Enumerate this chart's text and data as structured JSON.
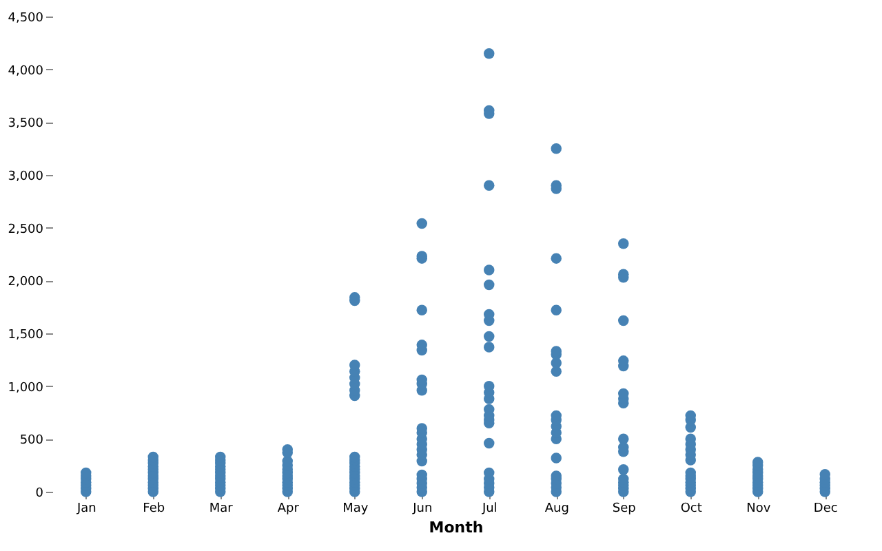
{
  "chart_data": {
    "type": "scatter",
    "xlabel": "Month",
    "categories": [
      "Jan",
      "Feb",
      "Mar",
      "Apr",
      "May",
      "Jun",
      "Jul",
      "Aug",
      "Sep",
      "Oct",
      "Nov",
      "Dec"
    ],
    "series": [
      {
        "color": "#4682b4",
        "x": [
          "Jan",
          "Jan",
          "Jan",
          "Jan",
          "Jan",
          "Jan",
          "Jan",
          "Feb",
          "Feb",
          "Feb",
          "Feb",
          "Feb",
          "Feb",
          "Feb",
          "Feb",
          "Feb",
          "Feb",
          "Feb",
          "Feb",
          "Mar",
          "Mar",
          "Mar",
          "Mar",
          "Mar",
          "Mar",
          "Mar",
          "Mar",
          "Mar",
          "Mar",
          "Mar",
          "Mar",
          "Apr",
          "Apr",
          "Apr",
          "Apr",
          "Apr",
          "Apr",
          "Apr",
          "Apr",
          "Apr",
          "Apr",
          "Apr",
          "Apr",
          "May",
          "May",
          "May",
          "May",
          "May",
          "May",
          "May",
          "May",
          "May",
          "May",
          "May",
          "May",
          "May",
          "May",
          "May",
          "May",
          "May",
          "May",
          "May",
          "May",
          "Jun",
          "Jun",
          "Jun",
          "Jun",
          "Jun",
          "Jun",
          "Jun",
          "Jun",
          "Jun",
          "Jun",
          "Jun",
          "Jun",
          "Jun",
          "Jun",
          "Jun",
          "Jun",
          "Jun",
          "Jun",
          "Jun",
          "Jun",
          "Jun",
          "Jul",
          "Jul",
          "Jul",
          "Jul",
          "Jul",
          "Jul",
          "Jul",
          "Jul",
          "Jul",
          "Jul",
          "Jul",
          "Jul",
          "Jul",
          "Jul",
          "Jul",
          "Jul",
          "Jul",
          "Jul",
          "Jul",
          "Jul",
          "Jul",
          "Jul",
          "Jul",
          "Aug",
          "Aug",
          "Aug",
          "Aug",
          "Aug",
          "Aug",
          "Aug",
          "Aug",
          "Aug",
          "Aug",
          "Aug",
          "Aug",
          "Aug",
          "Aug",
          "Aug",
          "Aug",
          "Aug",
          "Aug",
          "Aug",
          "Aug",
          "Sep",
          "Sep",
          "Sep",
          "Sep",
          "Sep",
          "Sep",
          "Sep",
          "Sep",
          "Sep",
          "Sep",
          "Sep",
          "Sep",
          "Sep",
          "Sep",
          "Sep",
          "Sep",
          "Sep",
          "Sep",
          "Oct",
          "Oct",
          "Oct",
          "Oct",
          "Oct",
          "Oct",
          "Oct",
          "Oct",
          "Oct",
          "Oct",
          "Oct",
          "Oct",
          "Oct",
          "Oct",
          "Oct",
          "Nov",
          "Nov",
          "Nov",
          "Nov",
          "Nov",
          "Nov",
          "Nov",
          "Nov",
          "Nov",
          "Nov",
          "Dec",
          "Dec",
          "Dec",
          "Dec",
          "Dec",
          "Dec"
        ],
        "values": [
          0,
          30,
          60,
          90,
          120,
          150,
          180,
          0,
          30,
          60,
          90,
          120,
          150,
          180,
          210,
          240,
          270,
          300,
          330,
          0,
          30,
          60,
          90,
          120,
          150,
          180,
          210,
          240,
          270,
          300,
          330,
          0,
          30,
          60,
          90,
          120,
          150,
          180,
          210,
          250,
          290,
          370,
          400,
          0,
          30,
          60,
          90,
          120,
          150,
          180,
          210,
          240,
          270,
          300,
          330,
          910,
          960,
          1020,
          1080,
          1140,
          1200,
          1810,
          1840,
          0,
          40,
          80,
          120,
          160,
          290,
          350,
          400,
          450,
          500,
          560,
          600,
          960,
          1020,
          1060,
          1340,
          1390,
          1720,
          2210,
          2230,
          2540,
          0,
          40,
          80,
          120,
          180,
          460,
          650,
          680,
          720,
          780,
          880,
          940,
          1000,
          1370,
          1470,
          1620,
          1680,
          1960,
          2100,
          2900,
          3580,
          3610,
          4150,
          0,
          40,
          80,
          120,
          150,
          320,
          500,
          560,
          620,
          680,
          720,
          1140,
          1220,
          1300,
          1330,
          1720,
          2210,
          2870,
          2900,
          3250,
          0,
          30,
          60,
          90,
          120,
          210,
          380,
          420,
          500,
          840,
          880,
          930,
          1190,
          1240,
          1620,
          2030,
          2060,
          2350,
          0,
          30,
          60,
          90,
          120,
          150,
          180,
          300,
          350,
          400,
          450,
          500,
          610,
          680,
          720,
          0,
          30,
          60,
          90,
          120,
          150,
          180,
          210,
          250,
          280,
          0,
          30,
          60,
          90,
          120,
          165
        ]
      }
    ],
    "ylim": [
      0,
      4500
    ],
    "yticks": [
      0,
      500,
      {
        "value": 1000,
        "label": "1,000"
      },
      {
        "value": 1500,
        "label": "1,500"
      },
      {
        "value": 2000,
        "label": "2,000"
      },
      {
        "value": 2500,
        "label": "2,500"
      },
      {
        "value": 3000,
        "label": "3,000"
      },
      {
        "value": 3500,
        "label": "3,500"
      },
      {
        "value": 4000,
        "label": "4,000"
      },
      {
        "value": 4500,
        "label": "4,500"
      }
    ],
    "grid": false,
    "legend": false,
    "marker": "circle"
  }
}
